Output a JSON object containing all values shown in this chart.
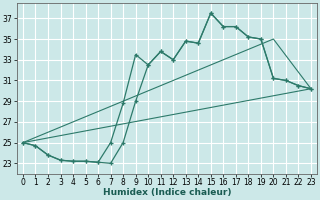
{
  "xlabel": "Humidex (Indice chaleur)",
  "bg_color": "#cce8e8",
  "grid_color": "#b8d8d8",
  "line_color": "#2d7a6a",
  "xlim": [
    -0.5,
    23.5
  ],
  "ylim": [
    22.0,
    38.5
  ],
  "yticks": [
    23,
    25,
    27,
    29,
    31,
    33,
    35,
    37
  ],
  "xticks": [
    0,
    1,
    2,
    3,
    4,
    5,
    6,
    7,
    8,
    9,
    10,
    11,
    12,
    13,
    14,
    15,
    16,
    17,
    18,
    19,
    20,
    21,
    22,
    23
  ],
  "curve1_x": [
    0,
    1,
    2,
    3,
    4,
    5,
    6,
    7,
    8,
    9,
    10,
    11,
    12,
    13,
    14,
    15,
    16,
    17,
    18,
    19,
    20,
    21,
    22,
    23
  ],
  "curve1_y": [
    25,
    24.7,
    23.8,
    23.3,
    23.2,
    23.2,
    23.1,
    25.0,
    28.8,
    33.5,
    32.5,
    33.8,
    33.0,
    34.8,
    34.6,
    37.5,
    36.2,
    36.2,
    35.2,
    35.0,
    31.2,
    31.0,
    30.5,
    30.2
  ],
  "curve2_x": [
    0,
    1,
    2,
    3,
    4,
    5,
    6,
    7,
    8,
    9,
    10,
    11,
    12,
    13,
    14,
    15,
    16,
    17,
    18,
    19,
    20,
    21,
    22,
    23
  ],
  "curve2_y": [
    25,
    24.7,
    23.8,
    23.3,
    23.2,
    23.2,
    23.1,
    23.0,
    25.0,
    29.0,
    32.5,
    33.8,
    33.0,
    34.8,
    34.6,
    37.5,
    36.2,
    36.2,
    35.2,
    35.0,
    31.2,
    31.0,
    30.5,
    30.2
  ],
  "line1_x": [
    0,
    23
  ],
  "line1_y": [
    25.0,
    30.2
  ],
  "line2_x": [
    0,
    20,
    23
  ],
  "line2_y": [
    25.0,
    35.0,
    30.2
  ],
  "xlabel_fontsize": 6.5,
  "tick_fontsize": 5.5
}
